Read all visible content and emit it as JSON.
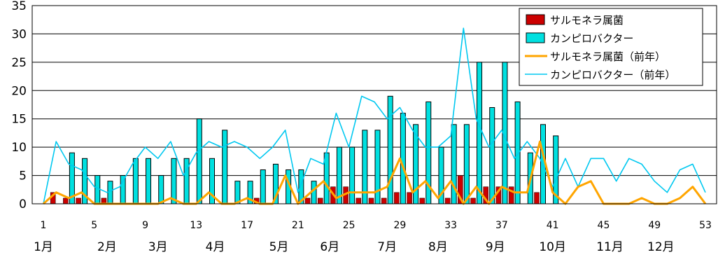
{
  "chart_data": {
    "type": "bar",
    "title": "",
    "xlabel": "",
    "ylabel": "",
    "ylim": [
      0,
      35
    ],
    "yticks": [
      0,
      5,
      10,
      15,
      20,
      25,
      30,
      35
    ],
    "x": [
      1,
      2,
      3,
      4,
      5,
      6,
      7,
      8,
      9,
      10,
      11,
      12,
      13,
      14,
      15,
      16,
      17,
      18,
      19,
      20,
      21,
      22,
      23,
      24,
      25,
      26,
      27,
      28,
      29,
      30,
      31,
      32,
      33,
      34,
      35,
      36,
      37,
      38,
      39,
      40,
      41,
      42,
      43,
      44,
      45,
      46,
      47,
      48,
      49,
      50,
      51,
      52,
      53
    ],
    "xtick_labels": [
      "1",
      "5",
      "9",
      "13",
      "17",
      "21",
      "25",
      "29",
      "33",
      "37",
      "41",
      "45",
      "49",
      "53"
    ],
    "month_labels": [
      "1月",
      "2月",
      "3月",
      "4月",
      "5月",
      "6月",
      "7月",
      "8月",
      "9月",
      "10月",
      "11月",
      "12月"
    ],
    "month_label_x": [
      1,
      6,
      10,
      14.5,
      19.5,
      23.5,
      28,
      32,
      36.5,
      41,
      45.5,
      49.5
    ],
    "legend_position": "top-right",
    "colors": {
      "salmonella_bar": "#cc0000",
      "campylobacter_bar": "#00e0e0",
      "salmonella_prev": "#ffa500",
      "campylobacter_prev": "#00c8f0"
    },
    "series": [
      {
        "name": "サルモネラ属菌",
        "kind": "bar",
        "values": [
          0,
          2,
          1,
          1,
          0,
          1,
          0,
          0,
          0,
          0,
          0,
          0,
          0,
          0,
          0,
          0,
          0,
          1,
          0,
          0,
          0,
          1,
          1,
          3,
          3,
          1,
          1,
          1,
          2,
          2,
          1,
          0,
          1,
          5,
          1,
          3,
          3,
          3,
          0,
          2,
          0,
          null,
          null,
          null,
          null,
          null,
          null,
          null,
          null,
          null,
          null,
          null,
          null
        ]
      },
      {
        "name": "カンピロバクター",
        "kind": "bar",
        "values": [
          0,
          0,
          9,
          8,
          5,
          4,
          5,
          8,
          8,
          5,
          8,
          8,
          15,
          8,
          13,
          4,
          4,
          6,
          7,
          6,
          6,
          4,
          9,
          10,
          10,
          13,
          13,
          19,
          16,
          14,
          18,
          10,
          14,
          14,
          25,
          17,
          25,
          18,
          9,
          14,
          12,
          null,
          null,
          null,
          null,
          null,
          null,
          null,
          null,
          null,
          null,
          null,
          null
        ]
      },
      {
        "name": "サルモネラ属菌（前年）",
        "kind": "line",
        "values": [
          0,
          2,
          1,
          2,
          0,
          0,
          0,
          0,
          0,
          0,
          1,
          0,
          0,
          2,
          0,
          0,
          1,
          0,
          0,
          5,
          0,
          2,
          4,
          1,
          2,
          2,
          2,
          3,
          8,
          2,
          4,
          1,
          4,
          0,
          3,
          0,
          3,
          2,
          2,
          11,
          2,
          0,
          3,
          4,
          0,
          0,
          0,
          1,
          0,
          0,
          1,
          3,
          0
        ]
      },
      {
        "name": "カンピロバクター（前年）",
        "kind": "line",
        "values": [
          0,
          11,
          7,
          6,
          3,
          2,
          3,
          7,
          10,
          8,
          11,
          5,
          9,
          11,
          10,
          11,
          10,
          8,
          10,
          13,
          2,
          8,
          7,
          16,
          10,
          19,
          18,
          15,
          17,
          13,
          10,
          10,
          12,
          31,
          15,
          10,
          13,
          8,
          11,
          8,
          3,
          8,
          3,
          8,
          8,
          4,
          8,
          7,
          4,
          2,
          6,
          7,
          2
        ]
      }
    ]
  }
}
